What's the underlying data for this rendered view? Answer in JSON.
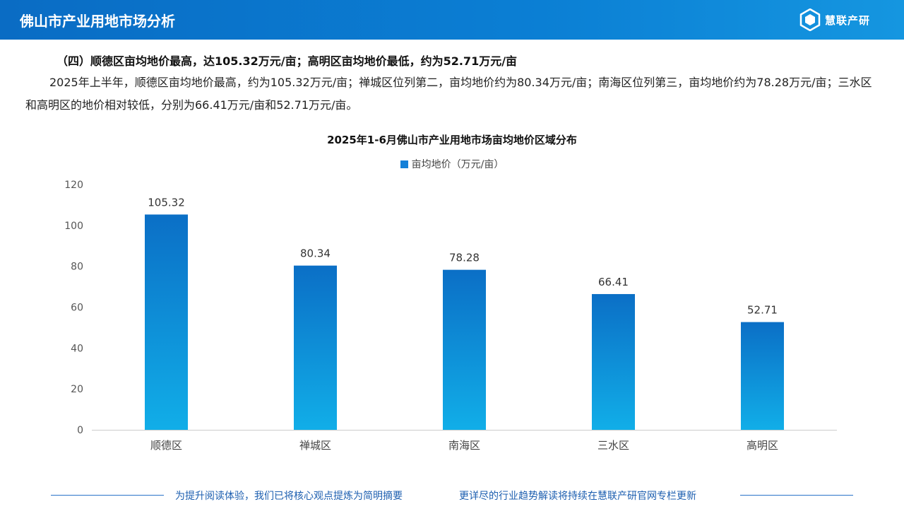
{
  "header": {
    "title": "佛山市产业用地市场分析",
    "brand_name": "慧联产研"
  },
  "section": {
    "subtitle": "（四）顺德区亩均地价最高，达105.32万元/亩；高明区亩均地价最低，约为52.71万元/亩",
    "paragraph": "2025年上半年，顺德区亩均地价最高，约为105.32万元/亩；禅城区位列第二，亩均地价约为80.34万元/亩；南海区位列第三，亩均地价约为78.28万元/亩；三水区和高明区的地价相对较低，分别为66.41万元/亩和52.71万元/亩。"
  },
  "chart_data": {
    "type": "bar",
    "title": "2025年1-6月佛山市产业用地市场亩均地价区域分布",
    "categories": [
      "顺德区",
      "禅城区",
      "南海区",
      "三水区",
      "高明区"
    ],
    "series": [
      {
        "name": "亩均地价（万元/亩）",
        "values": [
          105.32,
          80.34,
          78.28,
          66.41,
          52.71
        ]
      }
    ],
    "value_labels": [
      "105.32",
      "80.34",
      "78.28",
      "66.41",
      "52.71"
    ],
    "ylim": [
      0,
      120
    ],
    "yticks": [
      "0",
      "20",
      "40",
      "60",
      "80",
      "100",
      "120"
    ],
    "legend_position": "top-center",
    "grid": false,
    "colors": {
      "bar_top": "#0b6fc6",
      "bar_bottom": "#11aee8",
      "axis": "#cccccc"
    }
  },
  "footer": {
    "left_text": "为提升阅读体验，我们已将核心观点提炼为简明摘要",
    "right_text": "更详尽的行业趋势解读将持续在慧联产研官网专栏更新"
  }
}
